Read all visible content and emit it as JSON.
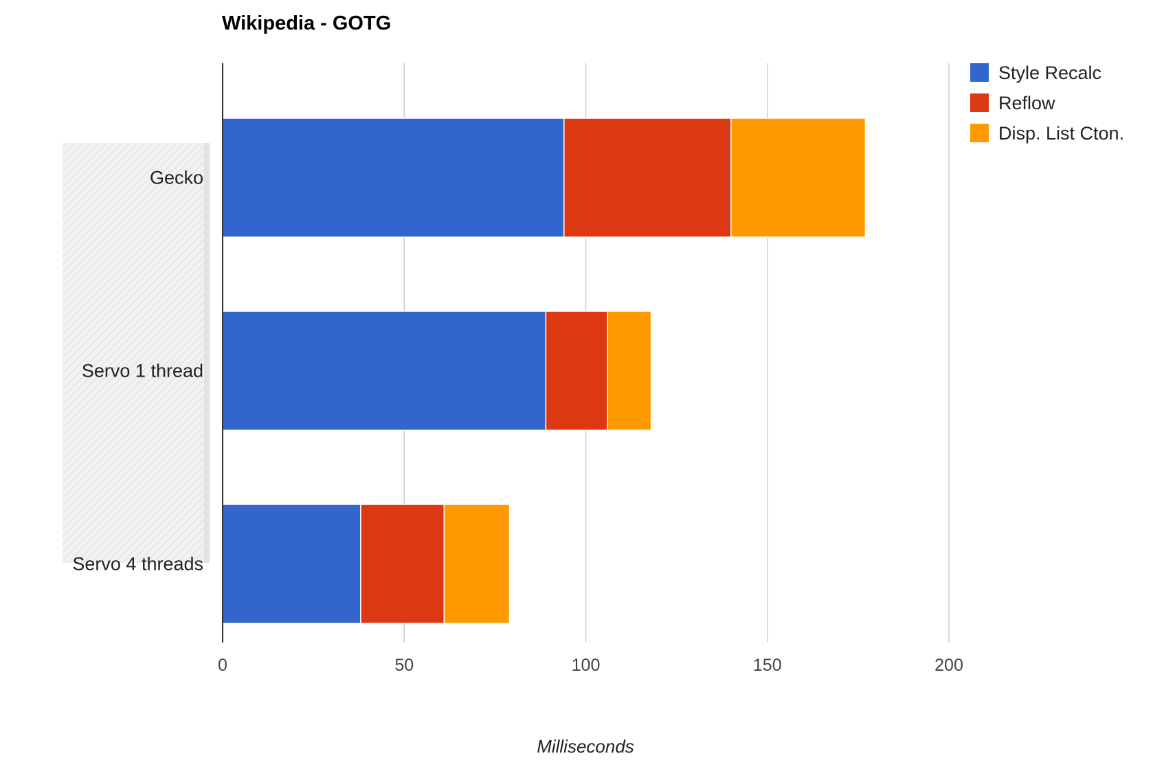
{
  "chart_data": {
    "type": "bar",
    "orientation": "horizontal",
    "stacked": true,
    "title": "Wikipedia - GOTG",
    "xlabel": "Milliseconds",
    "ylabel": "",
    "categories": [
      "Gecko",
      "Servo 1 thread",
      "Servo 4 threads"
    ],
    "series": [
      {
        "name": "Style Recalc",
        "color": "#3366cc",
        "values": [
          94,
          89,
          38
        ]
      },
      {
        "name": "Reflow",
        "color": "#dc3912",
        "values": [
          46,
          17,
          23
        ]
      },
      {
        "name": "Disp. List Cton.",
        "color": "#ff9900",
        "values": [
          37,
          12,
          18
        ]
      }
    ],
    "xlim": [
      0,
      200
    ],
    "xticks": [
      "0",
      "50",
      "100",
      "150",
      "200"
    ],
    "grid": true,
    "legend": "right",
    "highlighted_category_band": "Gecko to Servo 4 threads"
  }
}
